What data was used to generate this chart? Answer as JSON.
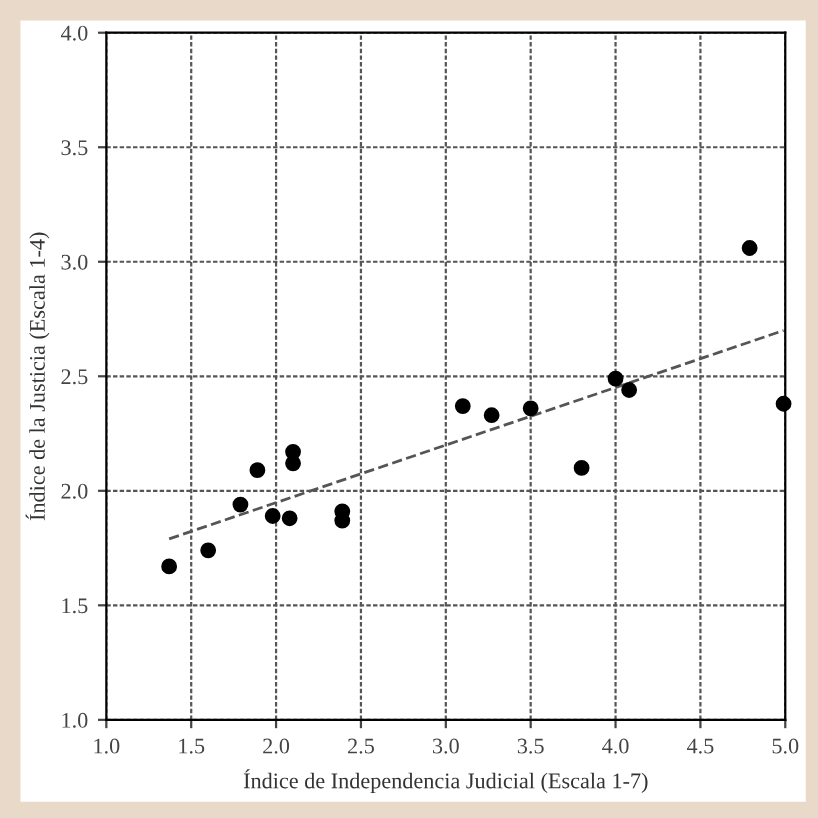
{
  "chart_data": {
    "type": "scatter",
    "xlabel": "Índice de Independencia Judicial (Escala 1-7)",
    "ylabel": "Índice de la Justicia (Escala 1-4)",
    "xlim": [
      1.0,
      5.0
    ],
    "ylim": [
      1.0,
      4.0
    ],
    "xticks": [
      {
        "value": 1.0,
        "label": "1.0"
      },
      {
        "value": 1.5,
        "label": "1.5"
      },
      {
        "value": 2.0,
        "label": "2.0"
      },
      {
        "value": 2.5,
        "label": "2.5"
      },
      {
        "value": 3.0,
        "label": "3.0"
      },
      {
        "value": 3.5,
        "label": "3.5"
      },
      {
        "value": 4.0,
        "label": "4.0"
      },
      {
        "value": 4.5,
        "label": "4.5"
      },
      {
        "value": 5.0,
        "label": "5.0"
      }
    ],
    "yticks": [
      {
        "value": 1.0,
        "label": "1.0"
      },
      {
        "value": 1.5,
        "label": "1.5"
      },
      {
        "value": 2.0,
        "label": "2.0"
      },
      {
        "value": 2.5,
        "label": "2.5"
      },
      {
        "value": 3.0,
        "label": "3.0"
      },
      {
        "value": 3.5,
        "label": "3.5"
      },
      {
        "value": 4.0,
        "label": "4.0"
      }
    ],
    "grid": true,
    "series": [
      {
        "marker": "circle",
        "color": "#000000",
        "x": [
          1.37,
          1.6,
          1.79,
          1.89,
          1.98,
          2.08,
          2.1,
          2.1,
          2.39,
          2.39,
          3.1,
          3.27,
          3.5,
          4.0,
          4.08,
          3.8,
          4.99,
          4.79
        ],
        "values": [
          1.67,
          1.74,
          1.94,
          2.09,
          1.89,
          1.88,
          2.17,
          2.12,
          1.91,
          1.87,
          2.37,
          2.33,
          2.36,
          2.49,
          2.44,
          2.1,
          2.38,
          3.06
        ]
      },
      {
        "type": "line",
        "color": "#555555",
        "line_style": "dashed",
        "x": [
          1.37,
          4.99
        ],
        "values": [
          1.79,
          2.7
        ]
      }
    ]
  }
}
